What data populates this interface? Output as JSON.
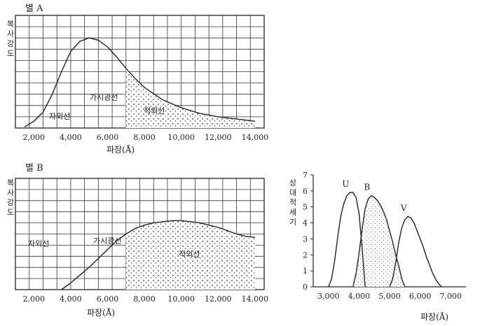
{
  "chart_data": [
    {
      "type": "line",
      "title": "별 A",
      "ylabel": "복사강도",
      "xlabel": "파장(Å)",
      "xlim": [
        1000,
        14500
      ],
      "ylim": [
        0,
        10
      ],
      "x_ticks": [
        "2,000",
        "4,000",
        "6,000",
        "8,000",
        "10,000",
        "12,000",
        "14,000"
      ],
      "x_tick_values": [
        2000,
        4000,
        6000,
        8000,
        10000,
        12000,
        14000
      ],
      "grid": true,
      "regions": [
        "자외선",
        "가시광선",
        "적외선"
      ],
      "series": [
        {
          "x": [
            1500,
            2000,
            2500,
            3000,
            3500,
            4000,
            4500,
            5000,
            5500,
            6000,
            6500,
            7000,
            7500,
            8000,
            9000,
            10000,
            11000,
            12000,
            13000,
            14000
          ],
          "y": [
            0.1,
            0.6,
            1.4,
            3.0,
            5.0,
            6.8,
            7.7,
            8.0,
            7.8,
            7.2,
            6.3,
            5.3,
            4.4,
            3.6,
            2.5,
            1.8,
            1.3,
            1.0,
            0.8,
            0.6
          ]
        }
      ]
    },
    {
      "type": "line",
      "title": "별 B",
      "ylabel": "복사강도",
      "xlabel": "파장(Å)",
      "xlim": [
        1000,
        14500
      ],
      "ylim": [
        0,
        10
      ],
      "x_ticks": [
        "2,000",
        "4,000",
        "6,000",
        "8,000",
        "10,000",
        "12,000",
        "14,000"
      ],
      "x_tick_values": [
        2000,
        4000,
        6000,
        8000,
        10000,
        12000,
        14000
      ],
      "grid": true,
      "regions": [
        "자외선",
        "가시광선",
        "적외선"
      ],
      "series": [
        {
          "x": [
            3500,
            4000,
            4500,
            5000,
            5500,
            6000,
            6500,
            7000,
            7500,
            8000,
            8500,
            9000,
            9500,
            10000,
            10500,
            11000,
            11500,
            12000,
            12500,
            13000,
            13500,
            14000
          ],
          "y": [
            0.0,
            0.6,
            1.3,
            2.0,
            2.8,
            3.6,
            4.4,
            5.0,
            5.5,
            5.8,
            6.0,
            6.1,
            6.2,
            6.2,
            6.1,
            6.0,
            5.8,
            5.6,
            5.3,
            5.0,
            4.8,
            4.7
          ]
        }
      ]
    },
    {
      "type": "line",
      "ylabel": "상대적세기",
      "xlabel": "파장(Å)",
      "xlim": [
        2500,
        7500
      ],
      "ylim": [
        0,
        7
      ],
      "x_ticks": [
        "3,000",
        "4,000",
        "5,000",
        "6,000",
        "7,000"
      ],
      "x_tick_values": [
        3000,
        4000,
        5000,
        6000,
        7000
      ],
      "y_ticks": [
        "0",
        "1",
        "2",
        "3",
        "4",
        "5",
        "6",
        "7"
      ],
      "grid": false,
      "series": [
        {
          "name": "U",
          "x": [
            3000,
            3100,
            3200,
            3300,
            3400,
            3500,
            3600,
            3700,
            3800,
            3900,
            4000,
            4100,
            4200
          ],
          "y": [
            0,
            0.5,
            1.6,
            3.1,
            4.4,
            5.2,
            5.7,
            5.9,
            5.9,
            5.6,
            4.6,
            2.4,
            0
          ]
        },
        {
          "name": "B",
          "x": [
            3800,
            3900,
            4000,
            4100,
            4200,
            4300,
            4400,
            4500,
            4600,
            4700,
            4800,
            4900,
            5000,
            5100,
            5200,
            5300,
            5400,
            5500
          ],
          "y": [
            0,
            0.8,
            2.1,
            3.6,
            4.9,
            5.5,
            5.7,
            5.6,
            5.4,
            5.1,
            4.7,
            4.2,
            3.5,
            2.8,
            2.0,
            1.3,
            0.5,
            0
          ]
        },
        {
          "name": "V",
          "x": [
            5000,
            5100,
            5200,
            5300,
            5400,
            5500,
            5600,
            5700,
            5800,
            5900,
            6000,
            6100,
            6200,
            6300,
            6400,
            6500,
            6600,
            6700
          ],
          "y": [
            0,
            0.5,
            1.5,
            2.8,
            3.7,
            4.2,
            4.4,
            4.3,
            4.0,
            3.5,
            3.0,
            2.5,
            1.9,
            1.4,
            0.9,
            0.5,
            0.2,
            0
          ]
        }
      ]
    }
  ]
}
